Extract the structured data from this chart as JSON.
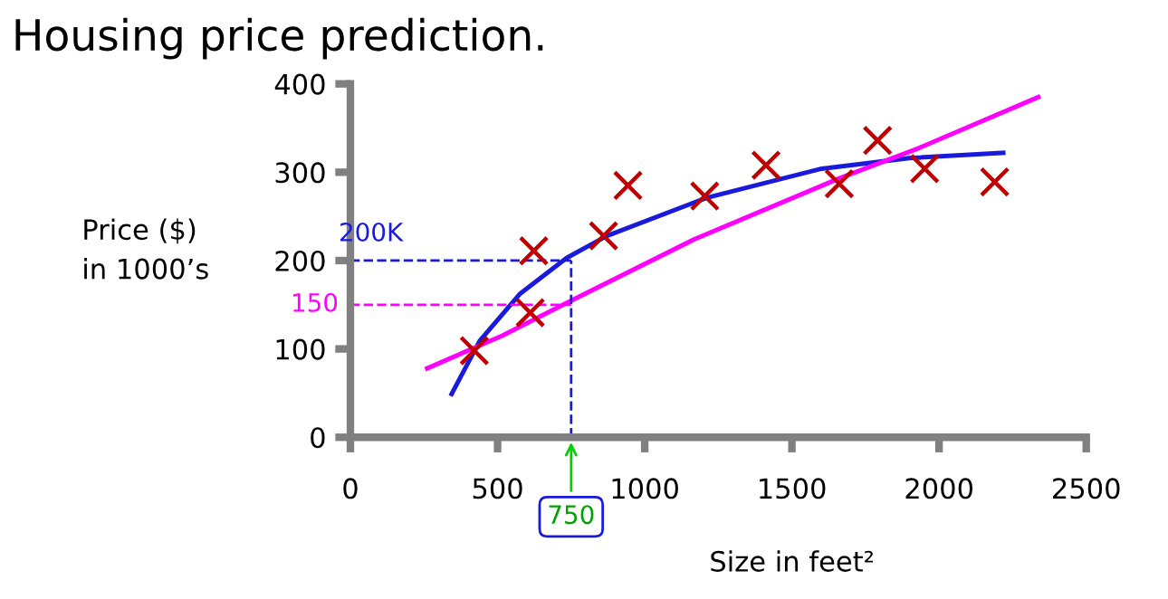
{
  "chart_data": {
    "type": "scatter",
    "title": "Housing price prediction.",
    "xlabel": "Size in feet²",
    "ylabel": "Price ($)\nin 1000’s",
    "xlim": [
      0,
      2500
    ],
    "ylim": [
      0,
      400
    ],
    "xticks": [
      0,
      500,
      1000,
      1500,
      2000,
      2500
    ],
    "yticks": [
      0,
      100,
      200,
      300,
      400
    ],
    "grid": false,
    "series": [
      {
        "marker": "cross",
        "color": "#c00000",
        "x": [
          421,
          623,
          611,
          860,
          943,
          1204,
          1412,
          1661,
          1791,
          1951,
          2189
        ],
        "values": [
          98,
          211,
          141,
          228,
          285,
          273,
          308,
          287,
          336,
          304,
          289
        ]
      },
      {
        "type": "line",
        "color": "#1a1adc",
        "line_style": "solid",
        "x": [
          344,
          439,
          575,
          735,
          872,
          1210,
          1601,
          1898,
          2218
        ],
        "values": [
          49,
          109,
          162,
          203,
          228,
          271,
          304,
          316,
          322
        ]
      },
      {
        "type": "line",
        "color": "#ff00ff",
        "line_style": "solid",
        "x": [
          261,
          516,
          735,
          1168,
          1661,
          1922,
          2337
        ],
        "values": [
          78,
          115,
          152,
          224,
          293,
          326,
          385
        ]
      }
    ],
    "ref_lines": [
      {
        "axis": "y",
        "value": 200,
        "label": "200K",
        "color": "#1a1adc",
        "line_style": "dashed"
      },
      {
        "axis": "y",
        "value": 150,
        "label": "150",
        "color": "#ff00ff",
        "line_style": "dashed"
      },
      {
        "axis": "x",
        "value": 750,
        "label": "750",
        "color": "#1a1adc",
        "line_style": "dashed"
      }
    ]
  }
}
